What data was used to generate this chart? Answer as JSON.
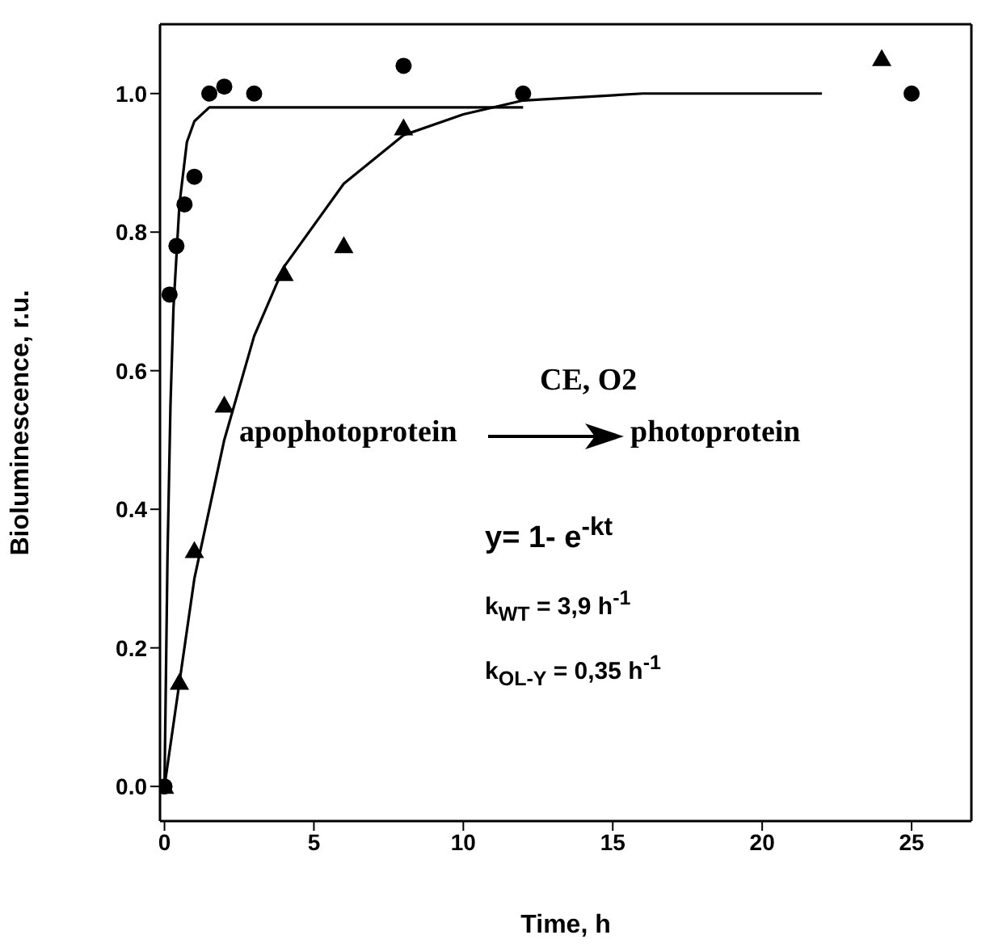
{
  "chart_data": {
    "type": "scatter",
    "xlabel": "Time, h",
    "ylabel": "Bioluminescence, r.u.",
    "xlim": [
      -0.15,
      27
    ],
    "ylim": [
      -0.05,
      1.1
    ],
    "xticks": [
      0,
      5,
      10,
      15,
      20,
      25
    ],
    "yticks": [
      {
        "value": 0,
        "label": "0.0"
      },
      0.2,
      0.4,
      0.6,
      0.8,
      {
        "value": 1,
        "label": "1.0"
      }
    ],
    "series": [
      {
        "marker": "circle",
        "color": "#000000",
        "x": [
          0,
          0.17,
          0.4,
          0.67,
          1,
          1.5,
          2,
          3,
          8,
          12,
          25
        ],
        "values": [
          0,
          0.71,
          0.78,
          0.84,
          0.88,
          1.0,
          1.01,
          1.0,
          1.04,
          1.0,
          1.0
        ]
      },
      {
        "marker": "triangle",
        "color": "#000000",
        "x": [
          0,
          0.5,
          1,
          2,
          4,
          6,
          8,
          24
        ],
        "values": [
          0,
          0.15,
          0.34,
          0.55,
          0.74,
          0.78,
          0.95,
          1.05
        ]
      },
      {
        "type": "line",
        "marker": "none",
        "color": "#000000",
        "x": [
          0,
          0.1,
          0.2,
          0.3,
          0.5,
          0.75,
          1,
          1.5,
          12
        ],
        "values": [
          0,
          0.33,
          0.55,
          0.69,
          0.84,
          0.93,
          0.96,
          0.98,
          0.98
        ]
      },
      {
        "type": "line",
        "marker": "none",
        "color": "#000000",
        "x": [
          0,
          1,
          2,
          3,
          4,
          6,
          8,
          10,
          12,
          16,
          22
        ],
        "values": [
          0,
          0.3,
          0.5,
          0.65,
          0.75,
          0.87,
          0.94,
          0.97,
          0.99,
          1.0,
          1.0
        ]
      }
    ],
    "annotations": [
      "apophotoprotein",
      "CE, O2",
      "photoprotein",
      "y= 1- e$^{-kt}$",
      "k$_{WT}$ = 3,9 h$^{-1}$",
      "k$_{OL-Y}$ = 0,35 h$^{-1}$"
    ]
  }
}
